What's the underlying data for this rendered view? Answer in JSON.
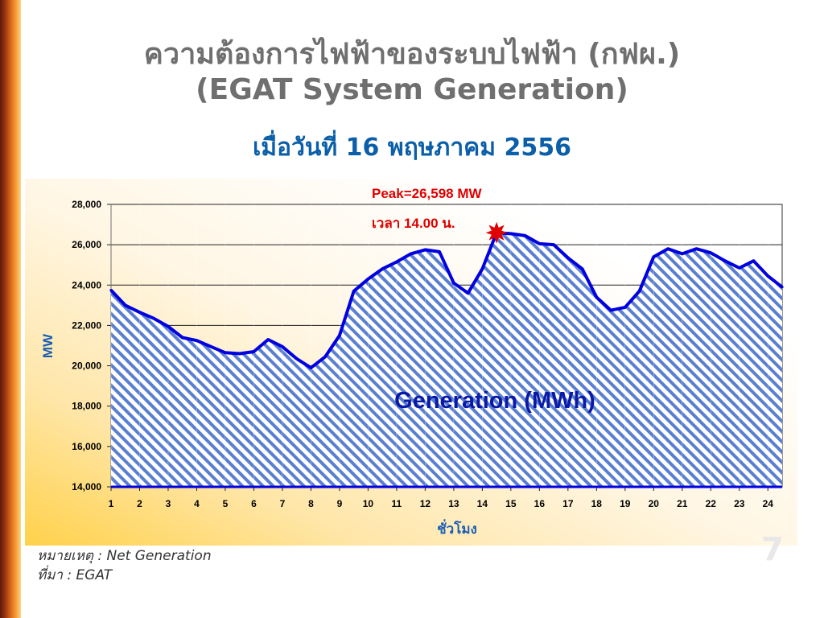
{
  "slide": {
    "title_line1": "ความต้องการไฟฟ้าของระบบไฟฟ้า (กฟผ.)",
    "title_line2": "(EGAT System Generation)",
    "subtitle": "เมื่อวันที่ 16 พฤษภาคม 2556",
    "note": "หมายเหตุ : Net Generation",
    "source": "ที่มา : EGAT",
    "page_mark": "7"
  },
  "colors": {
    "line": "#0000e0",
    "hatch": "#5b7fd0",
    "peak_marker": "#e00000",
    "peak_text": "#e00000",
    "axis_label": "#1a5fb4",
    "annotation": "#0a1aa8"
  },
  "chart_data": {
    "type": "area",
    "title": "",
    "xlabel": "ชั่วโมง",
    "ylabel": "MW",
    "ylim": [
      14000,
      28000
    ],
    "yticks": [
      14000,
      16000,
      18000,
      20000,
      22000,
      24000,
      26000,
      28000
    ],
    "ytick_labels": [
      "14,000",
      "16,000",
      "18,000",
      "20,000",
      "22,000",
      "24,000",
      "26,000",
      "28,000"
    ],
    "xticks": [
      1,
      2,
      3,
      4,
      5,
      6,
      7,
      8,
      9,
      10,
      11,
      12,
      13,
      14,
      15,
      16,
      17,
      18,
      19,
      20,
      21,
      22,
      23,
      24
    ],
    "grid": true,
    "series": [
      {
        "name": "Generation (MWh)",
        "x": [
          1,
          1.5,
          2,
          2.5,
          3,
          3.5,
          4,
          4.5,
          5,
          5.5,
          6,
          6.5,
          7,
          7.5,
          8,
          8.5,
          9,
          9.5,
          10,
          10.5,
          11,
          11.5,
          12,
          12.5,
          13,
          13.5,
          14,
          14.5,
          15,
          15.5,
          16,
          16.5,
          17,
          17.5,
          18,
          18.5,
          19,
          19.5,
          20,
          20.5,
          21,
          21.5,
          22,
          22.5,
          23,
          23.5,
          24,
          24.5
        ],
        "y": [
          23750,
          23000,
          22650,
          22350,
          21950,
          21400,
          21250,
          20950,
          20650,
          20600,
          20700,
          21300,
          20950,
          20350,
          19900,
          20450,
          21500,
          23700,
          24300,
          24800,
          25150,
          25550,
          25750,
          25650,
          24100,
          23600,
          24800,
          26598,
          26550,
          26450,
          26050,
          26000,
          25350,
          24800,
          23400,
          22750,
          22900,
          23700,
          25400,
          25800,
          25550,
          25800,
          25600,
          25200,
          24850,
          25200,
          24450,
          23900
        ]
      }
    ],
    "annotations": [
      {
        "text": "Peak=26,598 MW",
        "color": "#e00000"
      },
      {
        "text": "เวลา 14.00 น.",
        "color": "#e00000"
      },
      {
        "text": "Generation (MWh)",
        "color": "#0a1aa8"
      }
    ],
    "peak": {
      "x": 14.5,
      "y": 26598
    }
  }
}
